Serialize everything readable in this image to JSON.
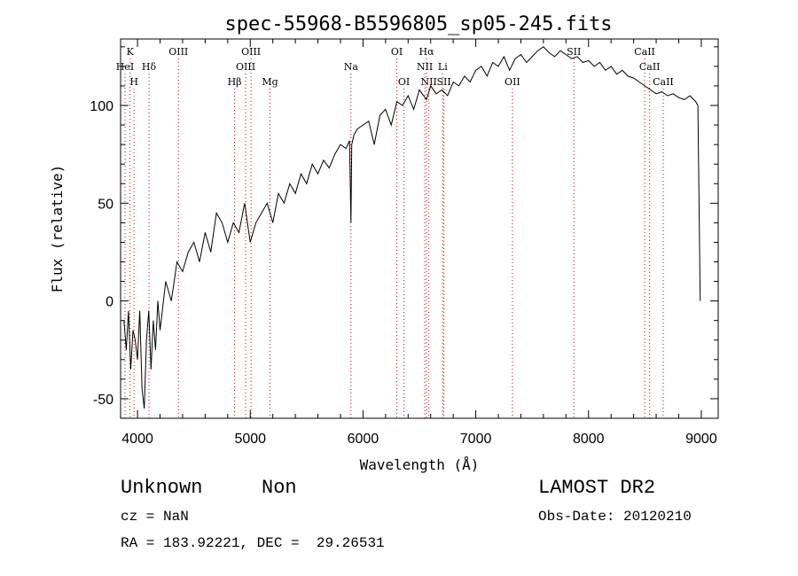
{
  "chart_data": {
    "type": "line",
    "title": "spec-55968-B5596805_sp05-245.fits",
    "xlabel": "Wavelength (Å)",
    "ylabel": "Flux (relative)",
    "xlim": [
      3850,
      9150
    ],
    "ylim": [
      -60,
      134
    ],
    "xticks": [
      4000,
      5000,
      6000,
      7000,
      8000,
      9000
    ],
    "yticks": [
      -50,
      0,
      50,
      100
    ],
    "grid": false,
    "line_color": "#000000",
    "marker_color": "#cc0000",
    "series": [
      {
        "x": [
          3880,
          3900,
          3920,
          3940,
          3960,
          3980,
          4000,
          4020,
          4040,
          4060,
          4080,
          4100,
          4120,
          4140,
          4160,
          4180,
          4200,
          4250,
          4300,
          4350,
          4400,
          4450,
          4500,
          4550,
          4600,
          4650,
          4700,
          4750,
          4800,
          4850,
          4900,
          4950,
          5000,
          5050,
          5100,
          5150,
          5200,
          5250,
          5300,
          5350,
          5400,
          5450,
          5500,
          5550,
          5600,
          5650,
          5700,
          5750,
          5800,
          5850,
          5880,
          5893,
          5900,
          5920,
          5950,
          6000,
          6050,
          6100,
          6150,
          6200,
          6250,
          6300,
          6350,
          6400,
          6450,
          6500,
          6563,
          6600,
          6650,
          6700,
          6750,
          6800,
          6850,
          6900,
          6950,
          7000,
          7050,
          7100,
          7150,
          7200,
          7250,
          7300,
          7350,
          7400,
          7450,
          7500,
          7550,
          7600,
          7650,
          7700,
          7750,
          7800,
          7850,
          7900,
          7950,
          8000,
          8050,
          8100,
          8150,
          8200,
          8250,
          8300,
          8350,
          8400,
          8450,
          8500,
          8550,
          8600,
          8650,
          8700,
          8750,
          8800,
          8850,
          8900,
          8950,
          8970,
          8990
        ],
        "y": [
          -10,
          -25,
          -5,
          -35,
          -15,
          -20,
          -30,
          -5,
          -45,
          -55,
          -20,
          -5,
          -35,
          -10,
          -25,
          0,
          -15,
          10,
          0,
          20,
          15,
          25,
          30,
          20,
          35,
          25,
          45,
          40,
          30,
          40,
          35,
          50,
          30,
          40,
          45,
          50,
          40,
          55,
          50,
          60,
          55,
          65,
          60,
          70,
          65,
          72,
          68,
          75,
          80,
          78,
          82,
          40,
          80,
          85,
          88,
          90,
          92,
          80,
          95,
          98,
          90,
          102,
          100,
          105,
          98,
          108,
          103,
          110,
          106,
          108,
          105,
          112,
          110,
          115,
          112,
          118,
          120,
          115,
          122,
          120,
          125,
          118,
          124,
          126,
          122,
          125,
          128,
          130,
          127,
          125,
          128,
          126,
          124,
          125,
          122,
          123,
          120,
          122,
          118,
          120,
          116,
          118,
          115,
          114,
          112,
          110,
          108,
          106,
          107,
          105,
          106,
          104,
          103,
          105,
          102,
          100,
          0
        ]
      }
    ],
    "line_markers": [
      {
        "label": "K",
        "wavelength": 3934,
        "row": 0
      },
      {
        "label": "HeI",
        "wavelength": 3889,
        "row": 1
      },
      {
        "label": "H",
        "wavelength": 3969,
        "row": 2
      },
      {
        "label": "Hδ",
        "wavelength": 4102,
        "row": 1
      },
      {
        "label": "OIII",
        "wavelength": 4363,
        "row": 0
      },
      {
        "label": "Hβ",
        "wavelength": 4861,
        "row": 2
      },
      {
        "label": "OIII",
        "wavelength": 4959,
        "row": 1
      },
      {
        "label": "OIII",
        "wavelength": 5007,
        "row": 0
      },
      {
        "label": "Mg",
        "wavelength": 5175,
        "row": 2
      },
      {
        "label": "Na",
        "wavelength": 5893,
        "row": 1
      },
      {
        "label": "OI",
        "wavelength": 6300,
        "row": 0
      },
      {
        "label": "OI",
        "wavelength": 6363,
        "row": 2
      },
      {
        "label": "Hα",
        "wavelength": 6563,
        "row": 0
      },
      {
        "label": "NII",
        "wavelength": 6548,
        "row": 1
      },
      {
        "label": "NII",
        "wavelength": 6584,
        "row": 2
      },
      {
        "label": "Li",
        "wavelength": 6707,
        "row": 1
      },
      {
        "label": "SII",
        "wavelength": 6717,
        "row": 2
      },
      {
        "label": "OII",
        "wavelength": 7325,
        "row": 2
      },
      {
        "label": "SII",
        "wavelength": 7870,
        "row": 0
      },
      {
        "label": "CaII",
        "wavelength": 8498,
        "row": 0
      },
      {
        "label": "CaII",
        "wavelength": 8542,
        "row": 1
      },
      {
        "label": "CaII",
        "wavelength": 8662,
        "row": 2
      }
    ]
  },
  "info": {
    "class": "Unknown",
    "subclass": "Non",
    "survey": "LAMOST DR2",
    "cz": "cz = NaN",
    "obs_date": "Obs-Date: 20120210",
    "radec": "RA = 183.92221, DEC =  29.26531"
  }
}
